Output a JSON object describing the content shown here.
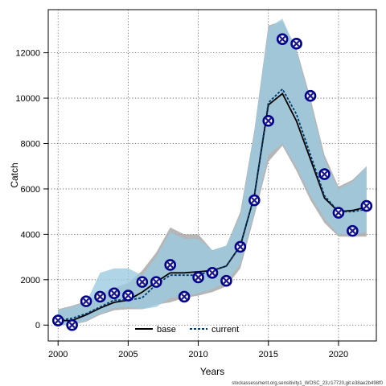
{
  "chart_data": {
    "type": "line",
    "title": "",
    "xlabel": "Years",
    "ylabel": "Catch",
    "xlim": [
      1999.3,
      2022.7
    ],
    "ylim": [
      -700,
      13900
    ],
    "x_ticks": [
      2000,
      2005,
      2010,
      2015,
      2020
    ],
    "y_ticks": [
      0,
      2000,
      4000,
      6000,
      8000,
      10000,
      12000
    ],
    "grid": true,
    "legend_position": "bottom-center",
    "x": [
      2000,
      2001,
      2002,
      2003,
      2004,
      2005,
      2006,
      2007,
      2008,
      2009,
      2010,
      2011,
      2012,
      2013,
      2014,
      2015,
      2016,
      2017,
      2018,
      2019,
      2020,
      2021,
      2022
    ],
    "series": [
      {
        "name": "base",
        "color": "#000000",
        "values": [
          200,
          200,
          450,
          750,
          1000,
          1100,
          1450,
          1900,
          2300,
          2300,
          2350,
          2400,
          2600,
          3500,
          5700,
          9700,
          10200,
          9000,
          7300,
          5600,
          5000,
          5050,
          5200
        ],
        "band_lower": [
          0,
          0,
          150,
          450,
          650,
          700,
          700,
          900,
          1000,
          1200,
          1300,
          1450,
          1700,
          2500,
          4800,
          7200,
          7900,
          6800,
          5500,
          4500,
          3900,
          3900,
          3900
        ],
        "band_upper": [
          700,
          850,
          1050,
          1400,
          1650,
          1850,
          2400,
          3200,
          4300,
          4000,
          4000,
          3300,
          3500,
          5000,
          8600,
          13200,
          13400,
          12200,
          10000,
          7500,
          6100,
          6400,
          7000
        ],
        "band_color": "#a9a9a9"
      },
      {
        "name": "current",
        "color": "#003a6e",
        "values": [
          200,
          300,
          500,
          800,
          1100,
          1100,
          1200,
          1800,
          2200,
          2200,
          2200,
          2400,
          2600,
          3500,
          5700,
          9800,
          10400,
          9300,
          7500,
          5700,
          5000,
          5000,
          5100
        ],
        "band_lower": [
          0,
          0,
          200,
          500,
          750,
          800,
          700,
          800,
          1200,
          1300,
          1400,
          1600,
          1900,
          2700,
          5000,
          7500,
          8000,
          7000,
          5700,
          4700,
          4000,
          4000,
          4100
        ],
        "band_upper": [
          650,
          800,
          1000,
          2300,
          2500,
          2500,
          2200,
          3000,
          4100,
          3800,
          3800,
          3300,
          3500,
          4800,
          8500,
          13100,
          13500,
          12100,
          9800,
          7300,
          6000,
          6300,
          7000
        ],
        "band_color": "#9ccbe0"
      }
    ],
    "observed": {
      "values": [
        200,
        0,
        1050,
        1250,
        1400,
        1300,
        1900,
        1900,
        2650,
        1250,
        2100,
        2300,
        1950,
        3450,
        5500,
        9000,
        12600,
        12400,
        10100,
        6650,
        4950,
        4150,
        5250
      ],
      "circle_color": "#00008b",
      "marker_color": "#1a1a8c"
    },
    "footer": "stockassessment.org,sensitivity1_WOSC_23,r17720,git:e38ae2b498f0"
  }
}
